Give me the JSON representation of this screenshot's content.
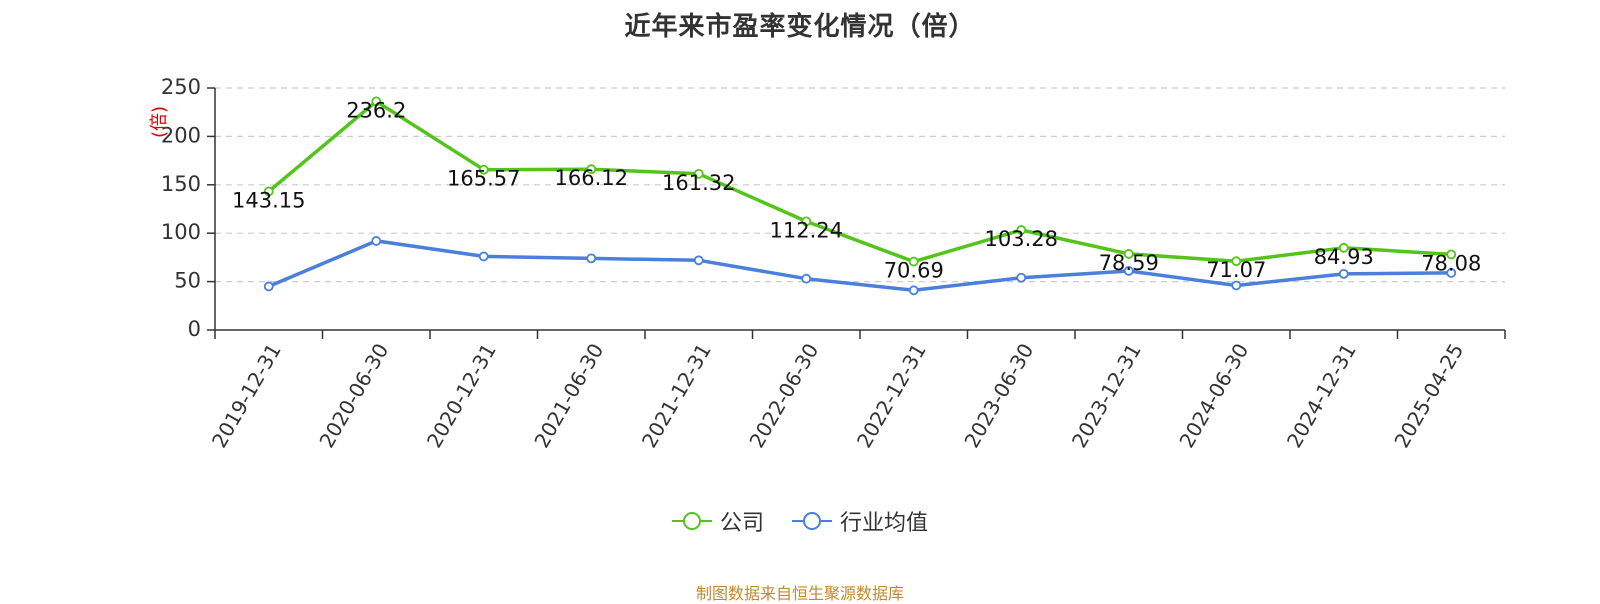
{
  "chart_data": {
    "type": "line",
    "title": "近年来市盈率变化情况（倍）",
    "ylabel": "(倍)",
    "ylim": [
      0,
      250
    ],
    "yticks": [
      0,
      50,
      100,
      150,
      200,
      250
    ],
    "grid": true,
    "legend_position": "bottom",
    "categories": [
      "2019-12-31",
      "2020-06-30",
      "2020-12-31",
      "2021-06-30",
      "2021-12-31",
      "2022-06-30",
      "2022-12-31",
      "2023-06-30",
      "2023-12-31",
      "2024-06-30",
      "2024-12-31",
      "2025-04-25"
    ],
    "series": [
      {
        "name": "公司",
        "color": "#52c41a",
        "values": [
          143.15,
          236.2,
          165.57,
          166.12,
          161.32,
          112.24,
          70.69,
          103.28,
          78.59,
          71.07,
          84.93,
          78.08
        ],
        "labels": [
          "143.15",
          "236.2",
          "165.57",
          "166.12",
          "161.32",
          "112.24",
          "70.69",
          "103.28",
          "78.59",
          "71.07",
          "84.93",
          "78.08"
        ]
      },
      {
        "name": "行业均值",
        "color": "#4a7fdb",
        "values": [
          45,
          92,
          76,
          74,
          72,
          53,
          41,
          54,
          61,
          46,
          58,
          59
        ]
      }
    ]
  },
  "source": "制图数据来自恒生聚源数据库"
}
